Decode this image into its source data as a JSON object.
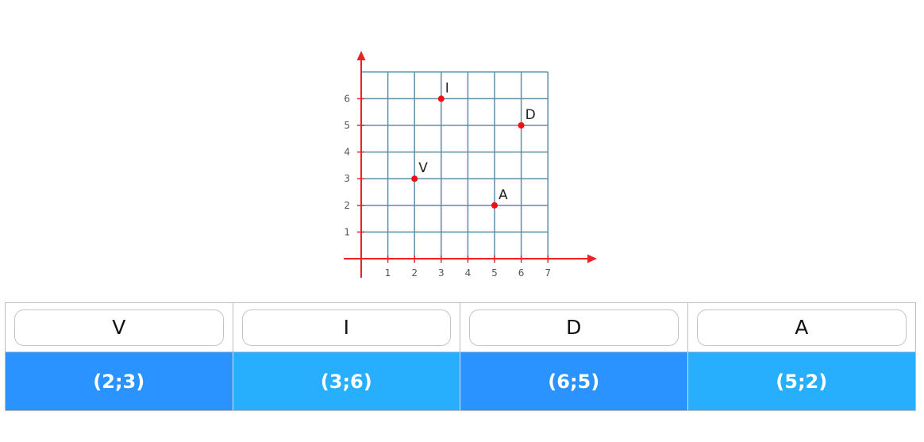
{
  "chart_data": {
    "type": "scatter",
    "title": "",
    "xlabel": "",
    "ylabel": "",
    "x_ticks": [
      "1",
      "2",
      "3",
      "4",
      "5",
      "6",
      "7"
    ],
    "y_ticks": [
      "1",
      "2",
      "3",
      "4",
      "5",
      "6"
    ],
    "xlim": [
      0,
      7
    ],
    "ylim": [
      0,
      7
    ],
    "grid": true,
    "points": [
      {
        "label": "I",
        "x": 3,
        "y": 6
      },
      {
        "label": "D",
        "x": 6,
        "y": 5
      },
      {
        "label": "V",
        "x": 2,
        "y": 3
      },
      {
        "label": "A",
        "x": 5,
        "y": 2
      }
    ],
    "colors": {
      "axis": "#ee2222",
      "grid": "#5b8fa8",
      "point": "#ee1111"
    }
  },
  "matching": {
    "letters": [
      "V",
      "I",
      "D",
      "A"
    ],
    "coordinates": [
      "(2;3)",
      "(3;6)",
      "(6;5)",
      "(5;2)"
    ],
    "colors": {
      "coord_dark": "#2a93ff",
      "coord_light": "#27aefc"
    }
  }
}
